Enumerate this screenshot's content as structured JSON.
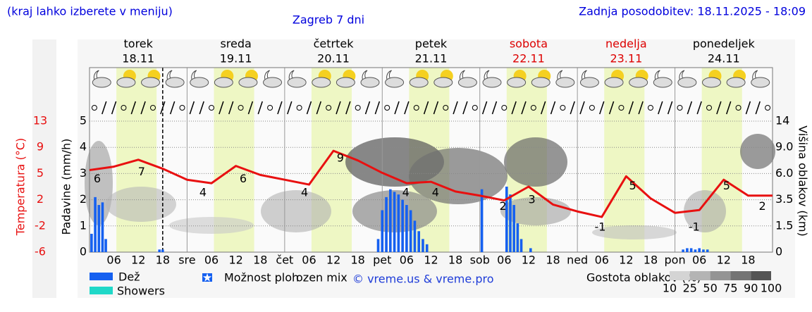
{
  "chart_data": {
    "type": "meteogram",
    "title": "Zagreb 7 dni",
    "note": "(kraj lahko izberete v meniju)",
    "updated": "Zadnja posodobitev: 18.11.2025 - 18:09",
    "copyright": "© vreme.us & vreme.pro",
    "days": [
      {
        "name": "torek",
        "date": "18.11",
        "color": "#000000"
      },
      {
        "name": "sreda",
        "date": "19.11",
        "color": "#000000"
      },
      {
        "name": "četrtek",
        "date": "20.11",
        "color": "#000000"
      },
      {
        "name": "petek",
        "date": "21.11",
        "color": "#000000"
      },
      {
        "name": "sobota",
        "date": "22.11",
        "color": "#dd0000"
      },
      {
        "name": "nedelja",
        "date": "23.11",
        "color": "#dd0000"
      },
      {
        "name": "ponedeljek",
        "date": "24.11",
        "color": "#000000"
      }
    ],
    "xlim": [
      0,
      168
    ],
    "xticks": [
      {
        "value": 6,
        "label": "06"
      },
      {
        "value": 12,
        "label": "12"
      },
      {
        "value": 18,
        "label": "18"
      },
      {
        "value": 24,
        "label": "sre"
      },
      {
        "value": 30,
        "label": "06"
      },
      {
        "value": 36,
        "label": "12"
      },
      {
        "value": 42,
        "label": "18"
      },
      {
        "value": 48,
        "label": "čet"
      },
      {
        "value": 54,
        "label": "06"
      },
      {
        "value": 60,
        "label": "12"
      },
      {
        "value": 66,
        "label": "18"
      },
      {
        "value": 72,
        "label": "pet"
      },
      {
        "value": 78,
        "label": "06"
      },
      {
        "value": 84,
        "label": "12"
      },
      {
        "value": 90,
        "label": "18"
      },
      {
        "value": 96,
        "label": "sob"
      },
      {
        "value": 102,
        "label": "06"
      },
      {
        "value": 108,
        "label": "12"
      },
      {
        "value": 114,
        "label": "18"
      },
      {
        "value": 120,
        "label": "ned"
      },
      {
        "value": 126,
        "label": "06"
      },
      {
        "value": 132,
        "label": "12"
      },
      {
        "value": 138,
        "label": "18"
      },
      {
        "value": 144,
        "label": "pon"
      },
      {
        "value": 150,
        "label": "06"
      },
      {
        "value": 156,
        "label": "12"
      },
      {
        "value": 162,
        "label": "18"
      }
    ],
    "daylight_hours": [
      6.6,
      16.5
    ],
    "now_x": 18,
    "ylabel": "Padavine (mm/h)",
    "ylim": [
      0,
      5
    ],
    "yticks": [
      0,
      1,
      2,
      3,
      4,
      5
    ],
    "temp_label": "Temperatura (°C)",
    "temp_lim": [
      -6,
      13
    ],
    "temp_ticks": [
      -6,
      {
        "value": -2.2,
        "label": "-2"
      },
      {
        "value": 1.6,
        "label": "2"
      },
      {
        "value": 5.4,
        "label": "5"
      },
      {
        "value": 9.2,
        "label": "9"
      },
      13
    ],
    "y2label": "Višina oblakov (km)",
    "y2lim": [
      0,
      14
    ],
    "y2ticks": [
      0,
      1.5,
      3.5,
      {
        "value": 6,
        "label": "6.0"
      },
      {
        "value": 9,
        "label": "9.0"
      },
      14
    ],
    "grid": true,
    "series": [
      {
        "name": "Dež",
        "color": "#1560f0",
        "x": [
          0.5,
          1.4,
          2.3,
          3.2,
          4.0,
          17.2,
          18.0,
          71,
          72,
          73,
          74,
          75,
          76,
          77,
          78,
          79,
          80,
          81,
          82,
          83,
          96.5,
          102.6,
          103.5,
          104.4,
          105.3,
          106.2,
          108.5,
          146,
          147,
          148,
          149,
          150,
          151,
          152
        ],
        "values": [
          0.7,
          2.1,
          1.8,
          1.9,
          0.5,
          0.1,
          0.1,
          0.5,
          1.6,
          2.1,
          2.4,
          2.3,
          2.2,
          2.0,
          1.8,
          1.6,
          1.2,
          0.8,
          0.5,
          0.3,
          2.4,
          2.5,
          2.2,
          1.8,
          1.1,
          0.5,
          0.15,
          0.1,
          0.15,
          0.15,
          0.1,
          0.15,
          0.1,
          0.1
        ]
      }
    ],
    "temperature": {
      "color": "#e81010",
      "x": [
        0,
        6,
        12,
        18,
        24,
        30,
        36,
        42,
        48,
        54,
        60,
        66,
        72,
        78,
        84,
        90,
        96,
        102,
        108,
        114,
        120,
        126,
        132,
        138,
        144,
        150,
        156,
        162,
        168
      ],
      "values": [
        5.9,
        6.4,
        7.4,
        6.1,
        4.5,
        4.0,
        6.5,
        5.2,
        4.5,
        3.8,
        8.7,
        7.3,
        5.5,
        4.0,
        4.2,
        2.8,
        2.2,
        1.5,
        3.5,
        0.9,
        -0.1,
        -0.9,
        5.0,
        1.8,
        -0.3,
        0.1,
        4.5,
        2.2,
        2.2
      ]
    },
    "temp_labels": [
      {
        "x": 1.9,
        "value": 6
      },
      {
        "x": 12.8,
        "value": 7
      },
      {
        "x": 27.9,
        "value": 4
      },
      {
        "x": 37.8,
        "value": 6
      },
      {
        "x": 52.9,
        "value": 4
      },
      {
        "x": 61.7,
        "value": 9
      },
      {
        "x": 77.8,
        "value": 4
      },
      {
        "x": 85.1,
        "value": 4
      },
      {
        "x": 101.7,
        "value": 2
      },
      {
        "x": 108.8,
        "value": 3
      },
      {
        "x": 125.6,
        "value": -1
      },
      {
        "x": 133.6,
        "value": 5
      },
      {
        "x": 148.7,
        "value": -1
      },
      {
        "x": 156.7,
        "value": 5
      },
      {
        "x": 165.5,
        "value": 2
      }
    ],
    "legend": [
      {
        "label": "Showers",
        "color": "#20d8c8"
      },
      {
        "label": "Možnost ploh",
        "color": "#1560f0"
      },
      {
        "label": "ozen mix",
        "color": "#ffffff"
      }
    ],
    "density_title": "Gostota oblakov (%)",
    "density_ticks": [
      10,
      25,
      50,
      75,
      90,
      100
    ],
    "density_colors": [
      "#d4d4d4",
      "#b4b4b4",
      "#949494",
      "#747474",
      "#545454"
    ]
  }
}
